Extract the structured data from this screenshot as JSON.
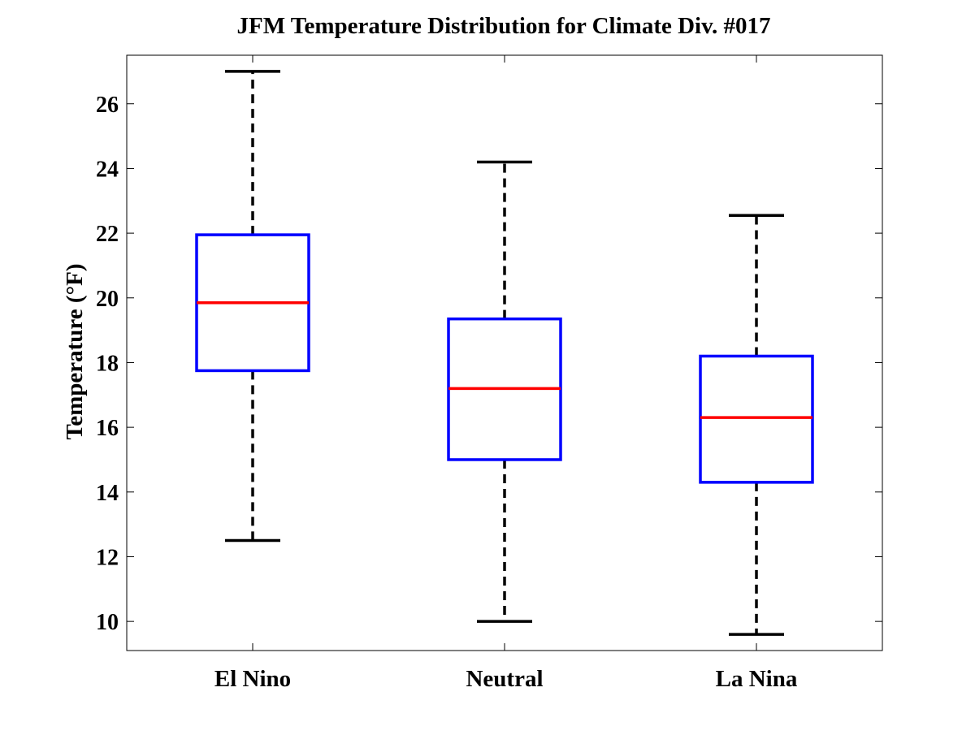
{
  "chart_data": {
    "type": "boxplot",
    "title": "JFM Temperature Distribution for Climate Div. #017",
    "xlabel": "",
    "ylabel": "Temperature (°F)",
    "ylim": [
      9.1,
      27.5
    ],
    "yticks": [
      10,
      12,
      14,
      16,
      18,
      20,
      22,
      24,
      26
    ],
    "categories": [
      "El Nino",
      "Neutral",
      "La Nina"
    ],
    "boxes": [
      {
        "name": "El Nino",
        "whisker_low": 12.5,
        "q1": 17.75,
        "median": 19.85,
        "q3": 21.95,
        "whisker_high": 27.0
      },
      {
        "name": "Neutral",
        "whisker_low": 10.0,
        "q1": 15.0,
        "median": 17.2,
        "q3": 19.35,
        "whisker_high": 24.2
      },
      {
        "name": "La Nina",
        "whisker_low": 9.6,
        "q1": 14.3,
        "median": 16.3,
        "q3": 18.2,
        "whisker_high": 22.55
      }
    ],
    "grid": false,
    "colors": {
      "box": "#0000ff",
      "median": "#ff0000",
      "whisker": "#000000",
      "axes": "#000000"
    }
  }
}
